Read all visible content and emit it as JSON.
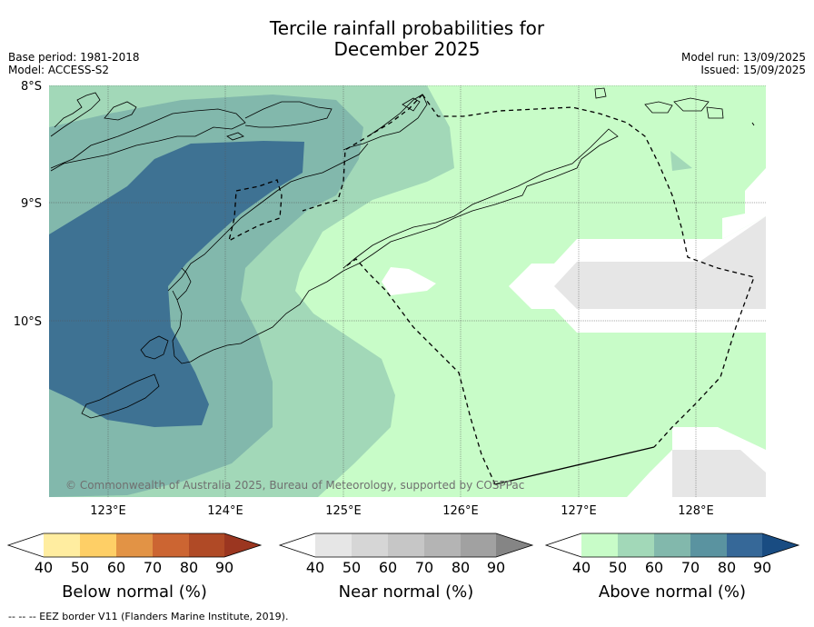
{
  "title_line1": "Tercile rainfall probabilities for",
  "title_line2": "December 2025",
  "base_period": "Base period: 1981-2018",
  "model": "Model: ACCESS-S2",
  "model_run": "Model run: 13/09/2025",
  "issued": "Issued: 15/09/2025",
  "lat_labels": [
    "8°S",
    "9°S",
    "10°S"
  ],
  "lon_labels": [
    "123°E",
    "124°E",
    "125°E",
    "126°E",
    "127°E",
    "128°E"
  ],
  "copyright": "© Commonwealth of Australia 2025, Bureau of Meteorology, supported by COSPPac",
  "colorbars": [
    {
      "label": "Below normal (%)",
      "ticks": [
        "40",
        "50",
        "60",
        "70",
        "80",
        "90"
      ],
      "colors": [
        "#ffffff",
        "#ffeda0",
        "#fecf66",
        "#e29345",
        "#cc6532",
        "#b04a26",
        "#9b3620"
      ]
    },
    {
      "label": "Near normal (%)",
      "ticks": [
        "40",
        "50",
        "60",
        "70",
        "80",
        "90"
      ],
      "colors": [
        "#ffffff",
        "#e6e6e6",
        "#d6d6d6",
        "#c6c6c6",
        "#b4b4b4",
        "#a1a1a1",
        "#858585"
      ]
    },
    {
      "label": "Above normal (%)",
      "ticks": [
        "40",
        "50",
        "60",
        "70",
        "80",
        "90"
      ],
      "colors": [
        "#ffffff",
        "#c8fcc8",
        "#a2d8b8",
        "#82b8ac",
        "#5a93a0",
        "#366898",
        "#194c82"
      ]
    }
  ],
  "footnote": "--  --  -- EEZ border V11 (Flanders Marine Institute, 2019)."
}
